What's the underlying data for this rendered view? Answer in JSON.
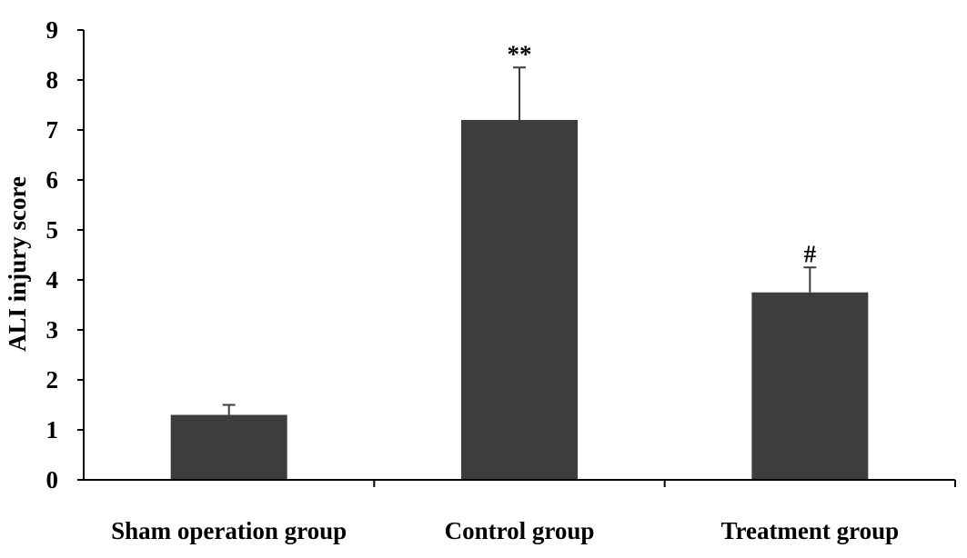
{
  "chart_data": {
    "type": "bar",
    "title": "",
    "xlabel": "",
    "ylabel": "ALI injury score",
    "categories": [
      "Sham operation group",
      "Control group",
      "Treatment group"
    ],
    "values": [
      1.3,
      7.2,
      3.75
    ],
    "error_upper": [
      1.5,
      8.25,
      4.25
    ],
    "annotations": [
      "",
      "**",
      "#"
    ],
    "ylim": [
      0,
      9
    ],
    "yticks": [
      "0",
      "1",
      "2",
      "3",
      "4",
      "5",
      "6",
      "7",
      "8",
      "9"
    ],
    "grid": false,
    "legend": "none",
    "bar_color": "#3d3d3d"
  }
}
